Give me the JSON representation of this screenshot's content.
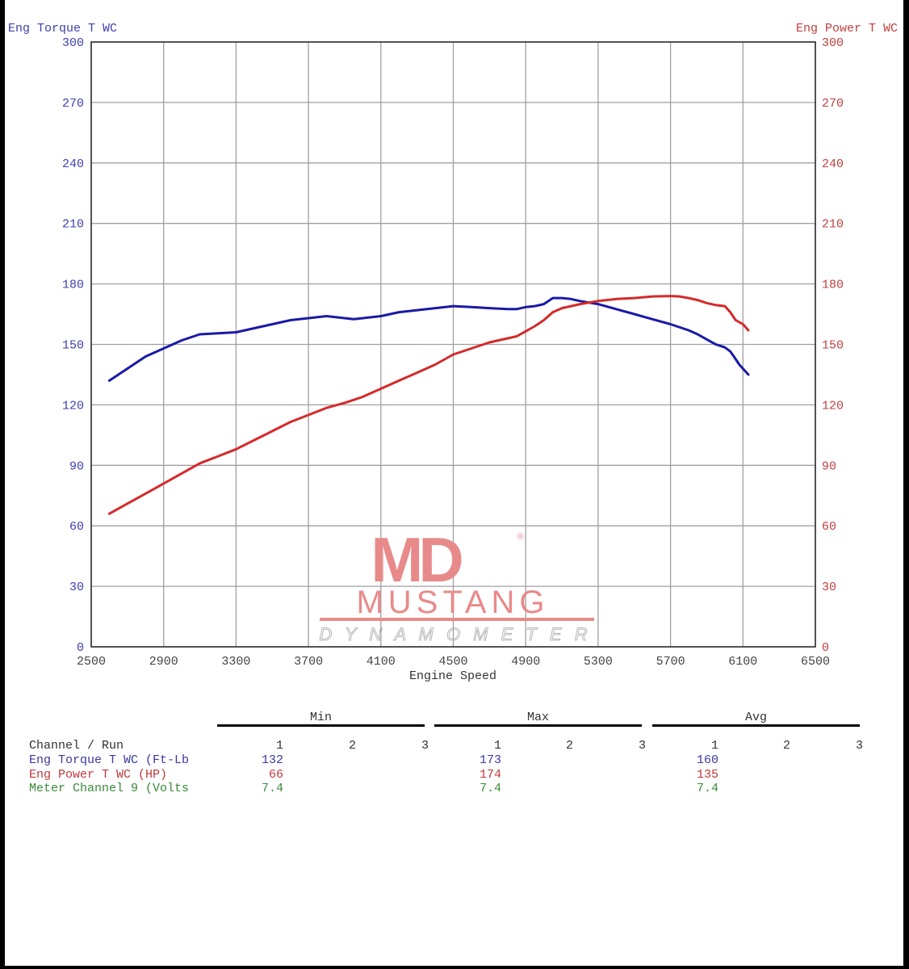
{
  "chart_data": {
    "type": "line",
    "title": "",
    "xlabel": "Engine Speed",
    "ylabel_left": "Eng Torque T WC",
    "ylabel_right": "Eng Power T WC",
    "xlim": [
      2500,
      6500
    ],
    "ylim_left": [
      0,
      300
    ],
    "ylim_right": [
      0,
      300
    ],
    "x_ticks": [
      2500,
      2900,
      3300,
      3700,
      4100,
      4500,
      4900,
      5300,
      5700,
      6100,
      6500
    ],
    "y_ticks_left": [
      0,
      30,
      60,
      90,
      120,
      150,
      180,
      210,
      240,
      270,
      300
    ],
    "y_ticks_right": [
      0,
      30,
      60,
      90,
      120,
      150,
      180,
      210,
      240,
      270,
      300
    ],
    "grid": true,
    "series": [
      {
        "name": "Eng Torque T WC (Ft-Lb)",
        "axis": "left",
        "color": "#1a1aa6",
        "x": [
          2600,
          2700,
          2800,
          2900,
          3000,
          3100,
          3200,
          3300,
          3400,
          3500,
          3600,
          3700,
          3800,
          3900,
          3950,
          4000,
          4100,
          4200,
          4300,
          4400,
          4500,
          4600,
          4700,
          4800,
          4850,
          4900,
          4950,
          5000,
          5050,
          5100,
          5150,
          5200,
          5300,
          5400,
          5500,
          5600,
          5700,
          5800,
          5850,
          5900,
          5950,
          6000,
          6030,
          6050,
          6080,
          6100,
          6130
        ],
        "y": [
          132,
          138,
          144,
          148,
          152,
          155,
          155.5,
          156,
          158,
          160,
          162,
          163,
          164,
          163,
          162.5,
          163,
          164,
          166,
          167,
          168,
          169,
          168.5,
          168,
          167.5,
          167.5,
          168.5,
          169,
          170,
          173,
          173,
          172.5,
          171.5,
          170,
          167.5,
          165,
          162.5,
          160,
          157,
          155,
          152.5,
          150,
          148.5,
          146.5,
          144,
          140,
          138,
          135
        ]
      },
      {
        "name": "Eng Power T WC (HP)",
        "axis": "right",
        "color": "#d42a2a",
        "x": [
          2600,
          2700,
          2800,
          2900,
          3000,
          3100,
          3200,
          3300,
          3400,
          3500,
          3600,
          3700,
          3800,
          3900,
          4000,
          4100,
          4200,
          4300,
          4400,
          4500,
          4600,
          4700,
          4800,
          4850,
          4900,
          4950,
          5000,
          5050,
          5100,
          5150,
          5200,
          5300,
          5400,
          5500,
          5600,
          5700,
          5750,
          5800,
          5850,
          5900,
          5950,
          6000,
          6030,
          6060,
          6100,
          6130
        ],
        "y": [
          66,
          71,
          76,
          81,
          86,
          91,
          94.5,
          98,
          102.5,
          107,
          111.5,
          115,
          118.5,
          121,
          124,
          128,
          132,
          136,
          140,
          145,
          148,
          151,
          153,
          154,
          156.5,
          159,
          162,
          166,
          168,
          169,
          170,
          171.5,
          172.5,
          173,
          173.8,
          174,
          173.8,
          173,
          172,
          170.5,
          169.5,
          169,
          166,
          162,
          160,
          157
        ]
      }
    ]
  },
  "axes": {
    "left_title": "Eng Torque T WC",
    "right_title": "Eng Power T WC",
    "x_title": "Engine Speed"
  },
  "logo": {
    "mark": "MD",
    "word": "MUSTANG",
    "sub": "D Y N A M O M E T E R",
    "registered": "®"
  },
  "summary": {
    "groups": [
      "Min",
      "Max",
      "Avg"
    ],
    "header_label": "Channel / Run",
    "runs": [
      "1",
      "2",
      "3"
    ],
    "rows": [
      {
        "channel": "Eng Torque T WC (Ft-Lb",
        "min": "132",
        "max": "173",
        "avg": "160",
        "color": "#3b3b9e"
      },
      {
        "channel": "Eng Power T WC (HP)",
        "min": "66",
        "max": "174",
        "avg": "135",
        "color": "#c0393b"
      },
      {
        "channel": "Meter Channel 9 (Volts",
        "min": "7.4",
        "max": "7.4",
        "avg": "7.4",
        "color": "#3a8a3a"
      }
    ]
  },
  "colors": {
    "torque": "#1a1aa6",
    "power": "#d42a2a",
    "volts": "#3a8a3a",
    "left_axis_text": "#4040b0",
    "right_axis_text": "#c04040",
    "grid": "#a0a0a0",
    "logo": "#e88a8a"
  }
}
